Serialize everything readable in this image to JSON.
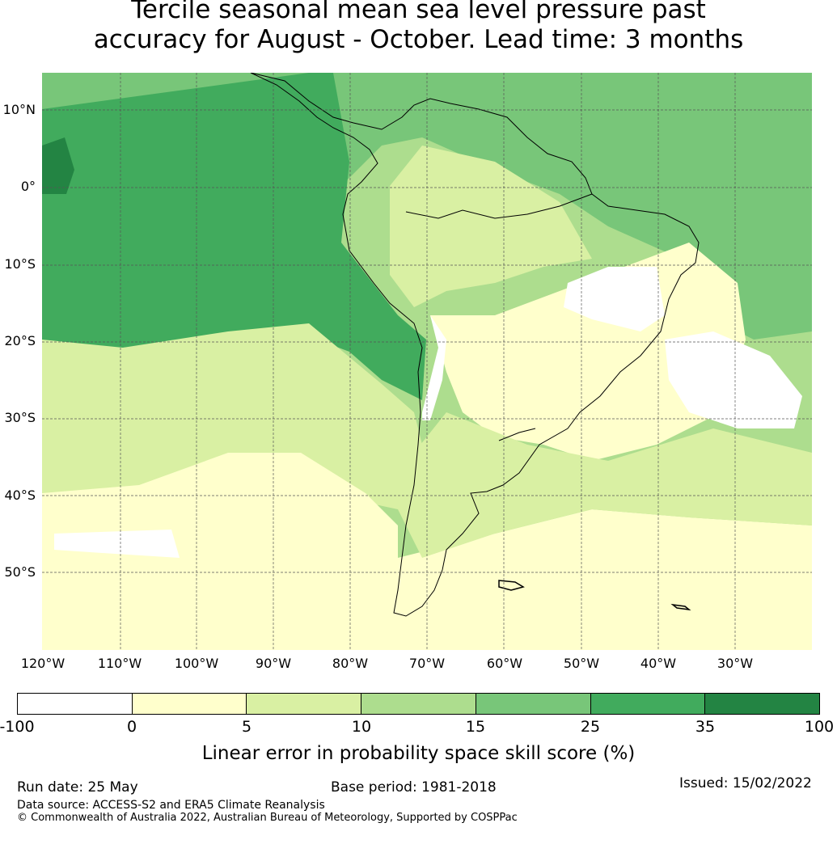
{
  "title": {
    "line1": "Tercile seasonal mean sea level pressure past",
    "line2": "accuracy for August - October. Lead time: 3 months"
  },
  "map": {
    "lat_labels": [
      "10°N",
      "0°",
      "10°S",
      "20°S",
      "30°S",
      "40°S",
      "50°S"
    ],
    "lon_labels": [
      "120°W",
      "110°W",
      "100°W",
      "90°W",
      "80°W",
      "70°W",
      "60°W",
      "50°W",
      "40°W",
      "30°W"
    ],
    "colors": {
      "c_neg100_0": "#ffffff",
      "c_0_5": "#ffffcc",
      "c_5_10": "#d9f0a3",
      "c_10_15": "#addd8e",
      "c_15_25": "#78c679",
      "c_25_35": "#41ab5d",
      "c_35_100": "#238443"
    }
  },
  "colorbar": {
    "ticks": [
      "-100",
      "0",
      "5",
      "10",
      "15",
      "25",
      "35",
      "100"
    ],
    "colors": [
      "#ffffff",
      "#ffffcc",
      "#d9f0a3",
      "#addd8e",
      "#78c679",
      "#41ab5d",
      "#238443"
    ],
    "label": "Linear error in probability space skill score (%)"
  },
  "footer": {
    "run_date": "Run date: 25 May",
    "base_period": "Base period: 1981-2018",
    "issued": "Issued: 15/02/2022",
    "data_source": "Data source: ACCESS-S2 and ERA5 Climate Reanalysis",
    "copyright": "© Commonwealth of Australia 2022, Australian Bureau of Meteorology, Supported by COSPPac"
  }
}
